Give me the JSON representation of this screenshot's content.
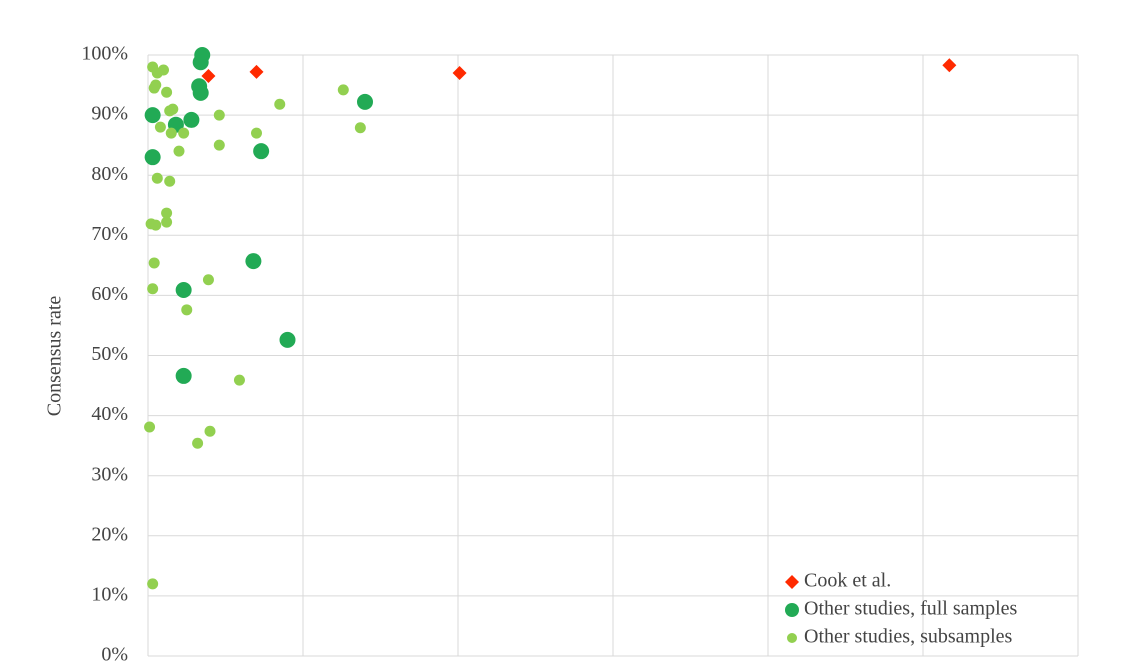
{
  "chart_data": {
    "type": "scatter",
    "y_label": "Consensus rate",
    "xlim": [
      0,
      6
    ],
    "xticks": [
      0,
      1,
      2,
      3,
      4,
      5,
      6
    ],
    "ylim": [
      0,
      100
    ],
    "yticks": [
      {
        "value": 0,
        "label": "0%"
      },
      {
        "value": 10,
        "label": "10%"
      },
      {
        "value": 20,
        "label": "20%"
      },
      {
        "value": 30,
        "label": "30%"
      },
      {
        "value": 40,
        "label": "40%"
      },
      {
        "value": 50,
        "label": "50%"
      },
      {
        "value": 60,
        "label": "60%"
      },
      {
        "value": 70,
        "label": "70%"
      },
      {
        "value": 80,
        "label": "80%"
      },
      {
        "value": 90,
        "label": "90%"
      },
      {
        "value": 100,
        "label": "100%"
      }
    ],
    "grid": true,
    "legend_position": "bottom-right",
    "series": [
      {
        "name": "Cook et al.",
        "color": "#ff2a00",
        "marker": "diamond",
        "x": [
          0.39,
          0.7,
          2.01,
          5.17
        ],
        "values": [
          96.5,
          97.2,
          97.0,
          98.3
        ]
      },
      {
        "name": "Other studies, full samples",
        "color": "#22aa55",
        "marker": "large-circle",
        "x": [
          0.35,
          0.34,
          0.33,
          0.34,
          0.03,
          0.18,
          0.28,
          0.03,
          0.73,
          1.4,
          0.68,
          0.23,
          0.9,
          0.23
        ],
        "values": [
          100,
          98.8,
          94.8,
          93.7,
          90.0,
          88.4,
          89.2,
          83.0,
          84.0,
          92.2,
          65.7,
          60.9,
          52.6,
          46.6
        ]
      },
      {
        "name": "Other studies, subsamples",
        "color": "#92d050",
        "marker": "small-circle",
        "x": [
          0.03,
          0.1,
          0.06,
          0.05,
          0.04,
          0.12,
          0.14,
          0.16,
          0.08,
          0.15,
          0.23,
          0.46,
          0.2,
          0.46,
          0.7,
          0.85,
          1.26,
          1.37,
          0.06,
          0.14,
          0.12,
          0.12,
          0.02,
          0.05,
          0.04,
          0.03,
          0.39,
          0.25,
          0.59,
          0.01,
          0.4,
          0.32,
          0.03
        ],
        "values": [
          98.0,
          97.5,
          97.0,
          95.0,
          94.5,
          93.8,
          90.7,
          91.0,
          88.0,
          87.0,
          87.0,
          90.0,
          84.0,
          85.0,
          87.0,
          91.8,
          94.2,
          87.9,
          79.5,
          79.0,
          73.7,
          72.2,
          71.9,
          71.7,
          65.4,
          61.1,
          62.6,
          57.6,
          45.9,
          38.1,
          37.4,
          35.4,
          12.0
        ]
      }
    ]
  }
}
